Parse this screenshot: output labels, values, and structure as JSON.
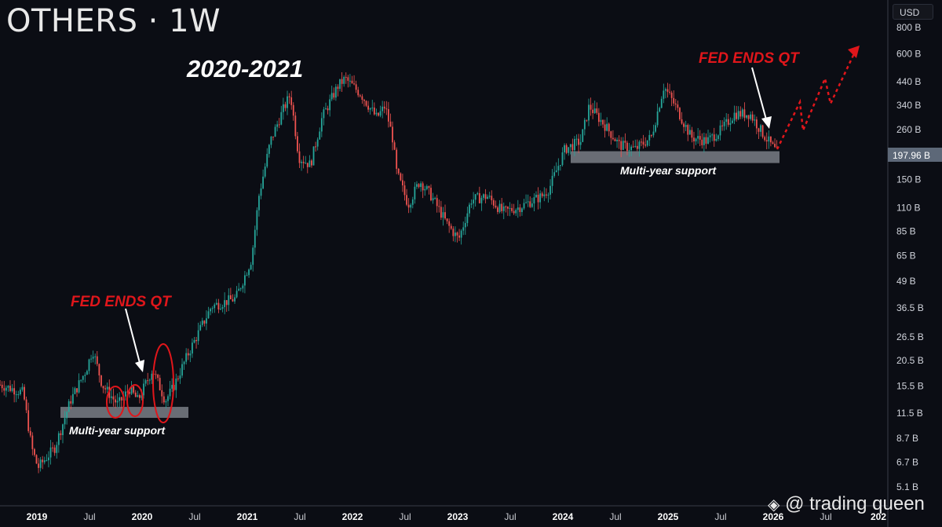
{
  "header": {
    "title": "OTHERS · 1W",
    "currency": "USD"
  },
  "watermark": "@ trading queen",
  "colors": {
    "up": "#26a69a",
    "down": "#ef5350",
    "annotation": "#e0161b",
    "support_band": "#8a8d96",
    "background": "#0b0d14"
  },
  "chart_data": {
    "type": "candlestick",
    "title": "OTHERS · 1W",
    "yscale": "log",
    "ylim": [
      4.6,
      860
    ],
    "xlim": [
      2018.65,
      2026.98
    ],
    "y_ticks": [
      {
        "v": 800,
        "label": "800 B"
      },
      {
        "v": 600,
        "label": "600 B"
      },
      {
        "v": 440,
        "label": "440 B"
      },
      {
        "v": 340,
        "label": "340 B"
      },
      {
        "v": 260,
        "label": "260 B"
      },
      {
        "v": 150,
        "label": "150 B"
      },
      {
        "v": 110,
        "label": "110 B"
      },
      {
        "v": 85,
        "label": "85 B"
      },
      {
        "v": 65,
        "label": "65 B"
      },
      {
        "v": 49,
        "label": "49 B"
      },
      {
        "v": 36.5,
        "label": "36.5 B"
      },
      {
        "v": 26.5,
        "label": "26.5 B"
      },
      {
        "v": 20.5,
        "label": "20.5 B"
      },
      {
        "v": 15.5,
        "label": "15.5 B"
      },
      {
        "v": 11.5,
        "label": "11.5 B"
      },
      {
        "v": 8.7,
        "label": "8.7 B"
      },
      {
        "v": 6.7,
        "label": "6.7 B"
      },
      {
        "v": 5.1,
        "label": "5.1 B"
      }
    ],
    "x_ticks": [
      {
        "t": 2019,
        "label": "2019",
        "major": true
      },
      {
        "t": 2019.5,
        "label": "Jul"
      },
      {
        "t": 2020,
        "label": "2020",
        "major": true
      },
      {
        "t": 2020.5,
        "label": "Jul"
      },
      {
        "t": 2021,
        "label": "2021",
        "major": true
      },
      {
        "t": 2021.5,
        "label": "Jul"
      },
      {
        "t": 2022,
        "label": "2022",
        "major": true
      },
      {
        "t": 2022.5,
        "label": "Jul"
      },
      {
        "t": 2023,
        "label": "2023",
        "major": true
      },
      {
        "t": 2023.5,
        "label": "Jul"
      },
      {
        "t": 2024,
        "label": "2024",
        "major": true
      },
      {
        "t": 2024.5,
        "label": "Jul"
      },
      {
        "t": 2025,
        "label": "2025",
        "major": true
      },
      {
        "t": 2025.5,
        "label": "Jul"
      },
      {
        "t": 2026,
        "label": "2026",
        "major": true
      },
      {
        "t": 2026.5,
        "label": "Jul"
      },
      {
        "t": 2027,
        "label": "202",
        "major": true
      }
    ],
    "current_price": {
      "value": 197.96,
      "label": "197.96 B"
    },
    "price_path_weekly_close_keypoints": [
      [
        2018.65,
        15.7
      ],
      [
        2018.87,
        14.4
      ],
      [
        2018.95,
        7.85
      ],
      [
        2019.01,
        6.3
      ],
      [
        2019.17,
        7.85
      ],
      [
        2019.32,
        13.2
      ],
      [
        2019.47,
        18.6
      ],
      [
        2019.53,
        23.1
      ],
      [
        2019.62,
        15.7
      ],
      [
        2019.77,
        12.6
      ],
      [
        2019.88,
        15.0
      ],
      [
        2019.96,
        13.2
      ],
      [
        2020.1,
        18.6
      ],
      [
        2020.22,
        13.2
      ],
      [
        2020.29,
        15.0
      ],
      [
        2020.44,
        22.2
      ],
      [
        2020.66,
        37.2
      ],
      [
        2020.89,
        40.6
      ],
      [
        2021.04,
        62.5
      ],
      [
        2021.11,
        125
      ],
      [
        2021.22,
        229
      ],
      [
        2021.34,
        323
      ],
      [
        2021.41,
        384
      ],
      [
        2021.49,
        192
      ],
      [
        2021.6,
        176
      ],
      [
        2021.71,
        296
      ],
      [
        2021.86,
        419
      ],
      [
        2021.93,
        456
      ],
      [
        2022.08,
        384
      ],
      [
        2022.23,
        296
      ],
      [
        2022.31,
        337
      ],
      [
        2022.38,
        239
      ],
      [
        2022.42,
        162
      ],
      [
        2022.53,
        114
      ],
      [
        2022.64,
        148
      ],
      [
        2022.75,
        125
      ],
      [
        2022.9,
        92
      ],
      [
        2023.01,
        77.6
      ],
      [
        2023.13,
        120
      ],
      [
        2023.28,
        125
      ],
      [
        2023.43,
        105
      ],
      [
        2023.57,
        110
      ],
      [
        2023.8,
        125
      ],
      [
        2023.87,
        136
      ],
      [
        2024.02,
        210
      ],
      [
        2024.17,
        229
      ],
      [
        2024.25,
        337
      ],
      [
        2024.4,
        272
      ],
      [
        2024.54,
        219
      ],
      [
        2024.69,
        210
      ],
      [
        2024.84,
        239
      ],
      [
        2024.96,
        419
      ],
      [
        2025.07,
        337
      ],
      [
        2025.22,
        239
      ],
      [
        2025.37,
        229
      ],
      [
        2025.51,
        260
      ],
      [
        2025.63,
        309
      ],
      [
        2025.78,
        309
      ],
      [
        2025.9,
        249
      ],
      [
        2026.04,
        200
      ]
    ],
    "annotations": {
      "period_label": "2020-2021",
      "fed_left": "FED ENDS QT",
      "fed_right": "FED ENDS QT",
      "support_left": "Multi-year support",
      "support_right": "Multi-year support",
      "support_left_range": [
        10.9,
        12.3
      ],
      "support_right_range": [
        180,
        205
      ]
    }
  }
}
